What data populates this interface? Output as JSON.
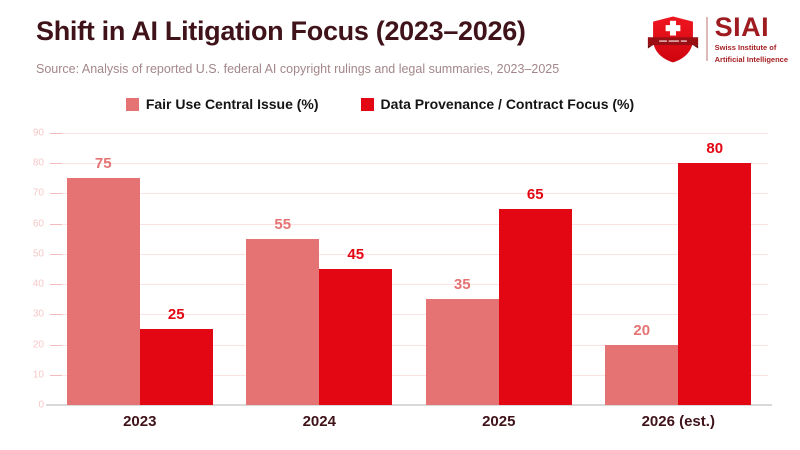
{
  "header": {
    "title": "Shift in AI Litigation Focus (2023–2026)",
    "subtitle": "Source: Analysis of reported U.S. federal AI copyright rulings and legal summaries, 2023–2025"
  },
  "logo": {
    "icon": "swiss-shield-cross-icon",
    "acronym": "SIAI",
    "org_line1": "Swiss Institute of",
    "org_line2": "Artificial Intelligence"
  },
  "legend": [
    {
      "label": "Fair Use Central Issue (%)",
      "color": "#e57373"
    },
    {
      "label": "Data Provenance / Contract Focus (%)",
      "color": "#e30613"
    }
  ],
  "chart_data": {
    "type": "bar",
    "categories": [
      "2023",
      "2024",
      "2025",
      "2026 (est.)"
    ],
    "series": [
      {
        "name": "Fair Use Central Issue (%)",
        "color": "#e57373",
        "values": [
          75,
          55,
          35,
          20
        ]
      },
      {
        "name": "Data Provenance / Contract Focus (%)",
        "color": "#e30613",
        "values": [
          25,
          45,
          65,
          80
        ]
      }
    ],
    "ylim": [
      0,
      90
    ],
    "ytick_interval": 10,
    "grid": true,
    "legend_position": "top",
    "value_labels": true,
    "xlabel": "",
    "ylabel": ""
  },
  "palette": {
    "brand_red": "#e30613",
    "salmon": "#e57373",
    "title_maroon": "#3f1319",
    "subtitle_gray": "#a3878a",
    "axis_pink": "#f6c8c8",
    "grid_pink": "#fbe3e3",
    "logo_dark_red": "#9e1b1f"
  }
}
